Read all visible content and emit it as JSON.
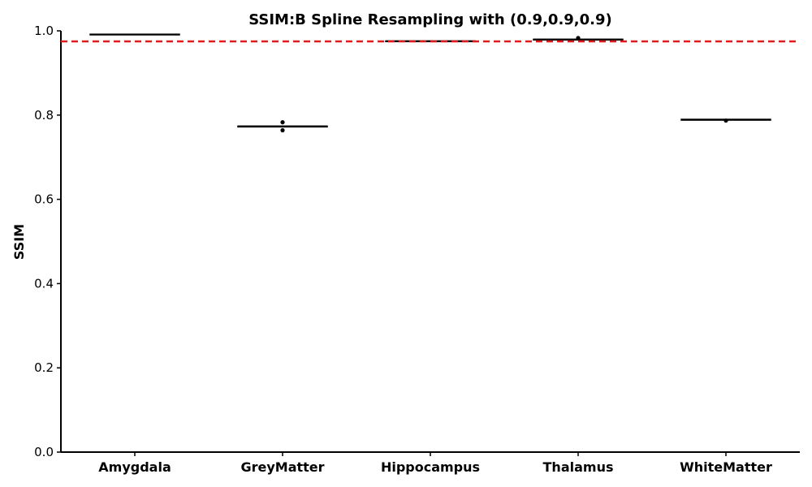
{
  "chart_data": {
    "type": "box",
    "title": "SSIM:B Spline Resampling with (0.9,0.9,0.9)",
    "xlabel": "",
    "ylabel": "SSIM",
    "ylim": [
      0.0,
      1.0
    ],
    "yticks": [
      "0.0",
      "0.2",
      "0.4",
      "0.6",
      "0.8",
      "1.0"
    ],
    "categories": [
      "Amygdala",
      "GreyMatter",
      "Hippocampus",
      "Thalamus",
      "WhiteMatter"
    ],
    "boxes": [
      {
        "category": "Amygdala",
        "min": 0.991,
        "q1": 0.991,
        "median": 0.991,
        "q3": 0.992,
        "max": 0.992,
        "outliers": []
      },
      {
        "category": "GreyMatter",
        "min": 0.772,
        "q1": 0.772,
        "median": 0.773,
        "q3": 0.774,
        "max": 0.775,
        "outliers": [
          0.783,
          0.764
        ]
      },
      {
        "category": "Hippocampus",
        "min": 0.975,
        "q1": 0.975,
        "median": 0.976,
        "q3": 0.976,
        "max": 0.977,
        "outliers": []
      },
      {
        "category": "Thalamus",
        "min": 0.979,
        "q1": 0.979,
        "median": 0.98,
        "q3": 0.98,
        "max": 0.981,
        "outliers": [
          0.983
        ]
      },
      {
        "category": "WhiteMatter",
        "min": 0.788,
        "q1": 0.788,
        "median": 0.789,
        "q3": 0.79,
        "max": 0.79,
        "outliers": [
          0.787
        ]
      }
    ],
    "reference_line": {
      "value": 0.975,
      "style": "dashed",
      "color": "#e31a1c"
    },
    "grid": false,
    "colors": {
      "box": "#000000",
      "axis": "#000000",
      "reference": "#e31a1c"
    }
  }
}
